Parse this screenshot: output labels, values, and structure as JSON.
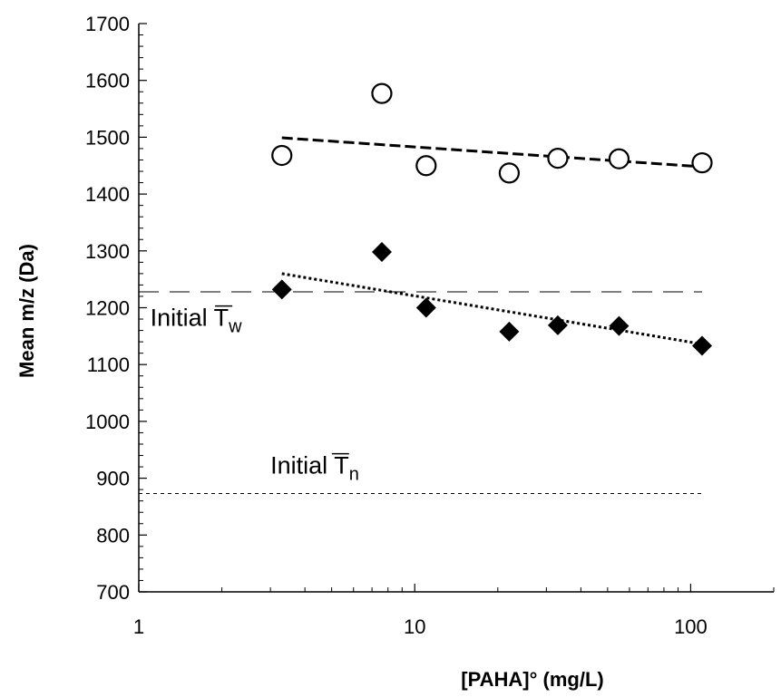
{
  "chart_data": {
    "type": "scatter",
    "title": "",
    "xlabel": "[PAHA]° (mg/L)",
    "ylabel": "Mean m/z (Da)",
    "xscale": "log",
    "xlim": [
      1,
      200
    ],
    "ylim": [
      700,
      1700
    ],
    "x_ticks": [
      1,
      10,
      100
    ],
    "x_tick_labels": [
      "1",
      "10",
      "100"
    ],
    "y_ticks": [
      700,
      800,
      900,
      1000,
      1100,
      1200,
      1300,
      1400,
      1500,
      1600,
      1700
    ],
    "y_tick_labels": [
      "700",
      "800",
      "900",
      "1000",
      "1100",
      "1200",
      "1300",
      "1400",
      "1500",
      "1600",
      "1700"
    ],
    "grid": false,
    "legend": "none",
    "series": [
      {
        "marker": "open-circle",
        "color": "#000000",
        "x": [
          3.3,
          7.6,
          11.0,
          22.0,
          33.0,
          55.0,
          110.0
        ],
        "y": [
          1468,
          1577,
          1450,
          1437,
          1463,
          1462,
          1455
        ]
      },
      {
        "marker": "filled-diamond",
        "color": "#000000",
        "x": [
          3.3,
          7.6,
          11.0,
          22.0,
          33.0,
          55.0,
          110.0
        ],
        "y": [
          1232,
          1298,
          1200,
          1158,
          1169,
          1168,
          1133
        ]
      }
    ],
    "trendlines": [
      {
        "style": "dashed",
        "x": [
          3.3,
          110.0
        ],
        "y": [
          1499,
          1448
        ]
      },
      {
        "style": "dotted",
        "x": [
          3.3,
          110.0
        ],
        "y": [
          1260,
          1136
        ]
      }
    ],
    "reference_lines": [
      {
        "style": "long-dash",
        "y": 1228,
        "x_range": [
          1,
          110
        ]
      },
      {
        "style": "short-dash",
        "y": 873,
        "x_range": [
          1,
          110
        ]
      }
    ],
    "annotations": [
      {
        "text": "Initial ",
        "symbol": "T",
        "subscript": "w",
        "x": 1.1,
        "y": 1168
      },
      {
        "text": "Initial ",
        "symbol": "T",
        "subscript": "n",
        "x": 3.0,
        "y": 908
      }
    ]
  }
}
